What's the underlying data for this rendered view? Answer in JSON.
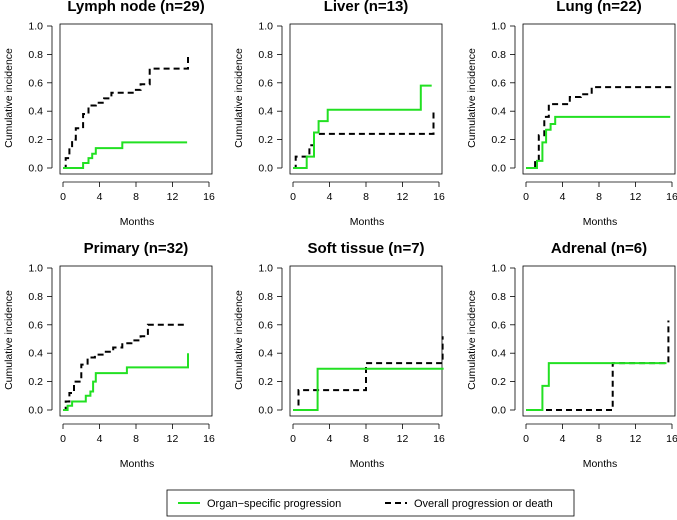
{
  "chart_data": {
    "type": "line",
    "step": true,
    "legend": {
      "placement": "bottom-center",
      "entries": [
        {
          "key": "organ",
          "label": "Organ−specific progression",
          "color": "#22e022",
          "dash": "solid"
        },
        {
          "key": "overall",
          "label": "Overall progression or death",
          "color": "#000000",
          "dash": "dashed"
        }
      ]
    },
    "panels": [
      {
        "title": "Lymph node (n=29)",
        "xlabel": "Months",
        "ylabel": "Cumulative incidence",
        "xlim": [
          0,
          16
        ],
        "ylim": [
          0,
          1
        ],
        "xticks": [
          "0",
          "4",
          "8",
          "12",
          "16"
        ],
        "yticks": [
          "0.0",
          "0.2",
          "0.4",
          "0.6",
          "0.8",
          "1.0"
        ],
        "series": [
          {
            "name": "Organ−specific progression",
            "x": [
              0,
              2.2,
              2.8,
              3.2,
              3.6,
              6.5,
              13.6
            ],
            "y": [
              0,
              0.035,
              0.07,
              0.1,
              0.14,
              0.18,
              0.18
            ]
          },
          {
            "name": "Overall progression or death",
            "x": [
              0,
              0.3,
              0.7,
              1.0,
              1.4,
              2.2,
              2.8,
              3.6,
              4.5,
              5.3,
              7.8,
              8.5,
              9.5,
              13.6,
              13.7
            ],
            "y": [
              0,
              0.07,
              0.14,
              0.2,
              0.28,
              0.38,
              0.44,
              0.46,
              0.49,
              0.53,
              0.55,
              0.59,
              0.7,
              0.7,
              0.81
            ]
          }
        ]
      },
      {
        "title": "Liver (n=13)",
        "xlabel": "Months",
        "ylabel": "Cumulative incidence",
        "xlim": [
          0,
          16
        ],
        "ylim": [
          0,
          1
        ],
        "xticks": [
          "0",
          "4",
          "8",
          "12",
          "16"
        ],
        "yticks": [
          "0.0",
          "0.2",
          "0.4",
          "0.6",
          "0.8",
          "1.0"
        ],
        "series": [
          {
            "name": "Organ−specific progression",
            "x": [
              0,
              1.5,
              2.3,
              2.8,
              3.8,
              14.0,
              15.2
            ],
            "y": [
              0,
              0.08,
              0.25,
              0.33,
              0.41,
              0.58,
              0.58
            ]
          },
          {
            "name": "Overall progression or death",
            "x": [
              0,
              0.3,
              1.8,
              2.3,
              15.3,
              15.4
            ],
            "y": [
              0,
              0.08,
              0.16,
              0.24,
              0.24,
              0.41
            ]
          }
        ]
      },
      {
        "title": "Lung (n=22)",
        "xlabel": "Months",
        "ylabel": "Cumulative incidence",
        "xlim": [
          0,
          16
        ],
        "ylim": [
          0,
          1
        ],
        "xticks": [
          "0",
          "4",
          "8",
          "12",
          "16"
        ],
        "yticks": [
          "0.0",
          "0.2",
          "0.4",
          "0.6",
          "0.8",
          "1.0"
        ],
        "series": [
          {
            "name": "Organ−specific progression",
            "x": [
              0,
              1.2,
              1.8,
              2.2,
              2.7,
              3.2,
              3.8,
              15.8
            ],
            "y": [
              0,
              0.05,
              0.18,
              0.27,
              0.31,
              0.36,
              0.36,
              0.36
            ]
          },
          {
            "name": "Overall progression or death",
            "x": [
              0,
              1.0,
              1.4,
              2.0,
              2.5,
              3.2,
              4.8,
              6.0,
              7.2,
              15.7,
              15.8
            ],
            "y": [
              0,
              0.05,
              0.23,
              0.36,
              0.45,
              0.45,
              0.5,
              0.52,
              0.57,
              0.57,
              0.59
            ]
          }
        ]
      },
      {
        "title": "Primary (n=32)",
        "xlabel": "Months",
        "ylabel": "Cumulative incidence",
        "xlim": [
          0,
          16
        ],
        "ylim": [
          0,
          1
        ],
        "xticks": [
          "0",
          "4",
          "8",
          "12",
          "16"
        ],
        "yticks": [
          "0.0",
          "0.2",
          "0.4",
          "0.6",
          "0.8",
          "1.0"
        ],
        "series": [
          {
            "name": "Organ−specific progression",
            "x": [
              0,
              0.5,
              1.0,
              2.5,
              3.0,
              3.3,
              3.6,
              7.0,
              13.6,
              13.7
            ],
            "y": [
              0,
              0.03,
              0.06,
              0.1,
              0.13,
              0.2,
              0.26,
              0.3,
              0.3,
              0.4
            ]
          },
          {
            "name": "Overall progression or death",
            "x": [
              0,
              0.3,
              0.7,
              1.2,
              2.0,
              2.7,
              3.5,
              4.5,
              5.5,
              6.5,
              7.5,
              8.5,
              9.3,
              13.6
            ],
            "y": [
              0,
              0.06,
              0.12,
              0.2,
              0.32,
              0.37,
              0.39,
              0.41,
              0.44,
              0.47,
              0.49,
              0.52,
              0.6,
              0.6
            ]
          }
        ]
      },
      {
        "title": "Soft tissue (n=7)",
        "xlabel": "Months",
        "ylabel": "Cumulative incidence",
        "xlim": [
          0,
          16
        ],
        "ylim": [
          0,
          1
        ],
        "xticks": [
          "0",
          "4",
          "8",
          "12",
          "16"
        ],
        "yticks": [
          "0.0",
          "0.2",
          "0.4",
          "0.6",
          "0.8",
          "1.0"
        ],
        "series": [
          {
            "name": "Organ−specific progression",
            "x": [
              0,
              2.7,
              16.5
            ],
            "y": [
              0,
              0.29,
              0.29
            ]
          },
          {
            "name": "Overall progression or death",
            "x": [
              0,
              0.6,
              3.0,
              8.0,
              15.9,
              16.4
            ],
            "y": [
              0,
              0.14,
              0.14,
              0.33,
              0.33,
              0.52
            ]
          }
        ]
      },
      {
        "title": "Adrenal (n=6)",
        "xlabel": "Months",
        "ylabel": "Cumulative incidence",
        "xlim": [
          0,
          16
        ],
        "ylim": [
          0,
          1
        ],
        "xticks": [
          "0",
          "4",
          "8",
          "12",
          "16"
        ],
        "yticks": [
          "0.0",
          "0.2",
          "0.4",
          "0.6",
          "0.8",
          "1.0"
        ],
        "series": [
          {
            "name": "Organ−specific progression",
            "x": [
              0,
              1.8,
              2.5,
              15.4
            ],
            "y": [
              0,
              0.17,
              0.33,
              0.33
            ]
          },
          {
            "name": "Overall progression or death",
            "x": [
              0,
              9.5,
              15.3,
              15.6
            ],
            "y": [
              0,
              0.33,
              0.33,
              0.63
            ]
          }
        ]
      }
    ]
  }
}
